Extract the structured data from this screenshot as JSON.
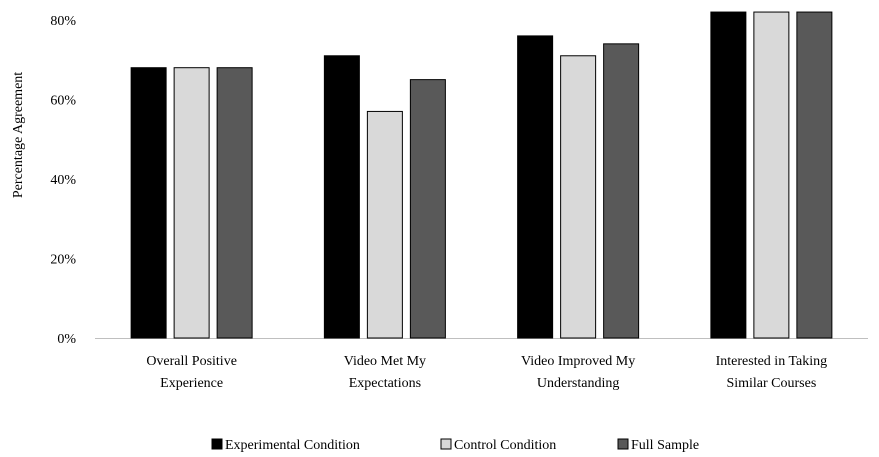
{
  "chart_data": {
    "type": "bar",
    "ylabel": "Percentage Agreement",
    "ylim": [
      0,
      80
    ],
    "yticks": [
      "0%",
      "20%",
      "40%",
      "60%",
      "80%"
    ],
    "ytick_values": [
      0,
      20,
      40,
      60,
      80
    ],
    "categories": [
      [
        "Overall Positive",
        "Experience"
      ],
      [
        "Video Met My",
        "Expectations"
      ],
      [
        "Video Improved My",
        "Understanding"
      ],
      [
        "Interested in Taking",
        "Similar Courses"
      ]
    ],
    "series": [
      {
        "name": "Experimental Condition",
        "color": "#000000",
        "values": [
          68,
          71,
          76,
          82
        ]
      },
      {
        "name": "Control Condition",
        "color": "#d9d9d9",
        "values": [
          68,
          57,
          71,
          82
        ]
      },
      {
        "name": "Full Sample",
        "color": "#595959",
        "values": [
          68,
          65,
          74,
          82
        ]
      }
    ],
    "grid": false,
    "legend_position": "bottom"
  }
}
